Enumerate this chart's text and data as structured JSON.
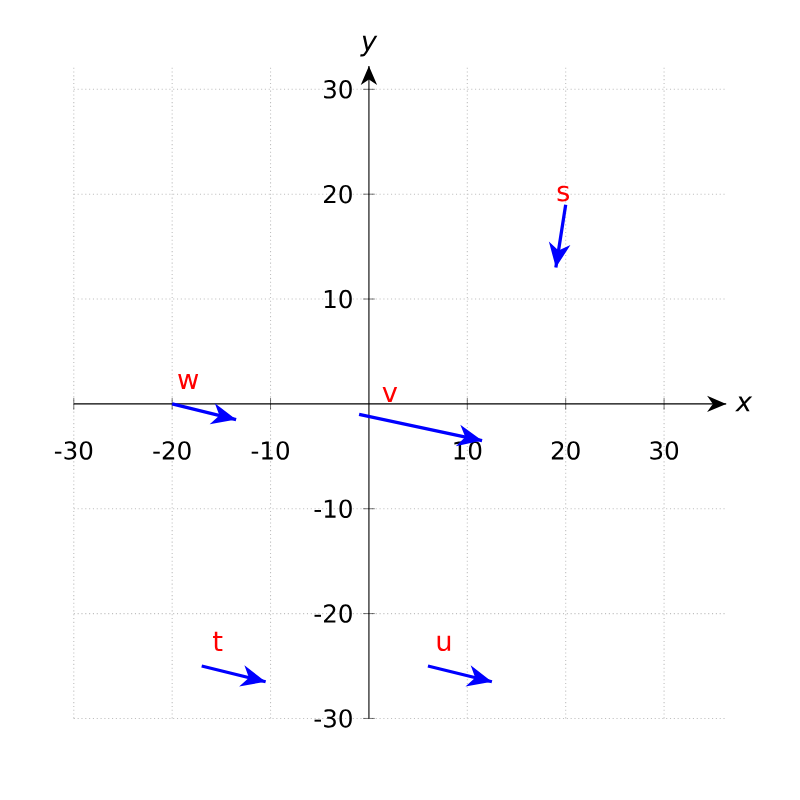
{
  "chart_data": {
    "type": "line",
    "xlabel": "x",
    "ylabel": "y",
    "xlim": [
      -30,
      30
    ],
    "ylim": [
      -30,
      30
    ],
    "xticks": [
      -30,
      -20,
      -10,
      10,
      20,
      30
    ],
    "yticks": [
      -30,
      -20,
      -10,
      10,
      20,
      30
    ],
    "grid": true,
    "line_style": "solid",
    "series": [
      {
        "name": "s",
        "color": "#0000ff",
        "x": [
          20,
          19
        ],
        "values": [
          19,
          13
        ]
      },
      {
        "name": "t",
        "color": "#0000ff",
        "x": [
          -17,
          -10.5
        ],
        "values": [
          -25,
          -26.5
        ]
      },
      {
        "name": "u",
        "color": "#0000ff",
        "x": [
          6,
          12.5
        ],
        "values": [
          -25,
          -26.5
        ]
      },
      {
        "name": "v",
        "color": "#0000ff",
        "x": [
          -1,
          11.5
        ],
        "values": [
          -1,
          -3.5
        ]
      },
      {
        "name": "w",
        "color": "#0000ff",
        "x": [
          -20,
          -13.5
        ],
        "values": [
          0,
          -1.5
        ]
      }
    ]
  }
}
